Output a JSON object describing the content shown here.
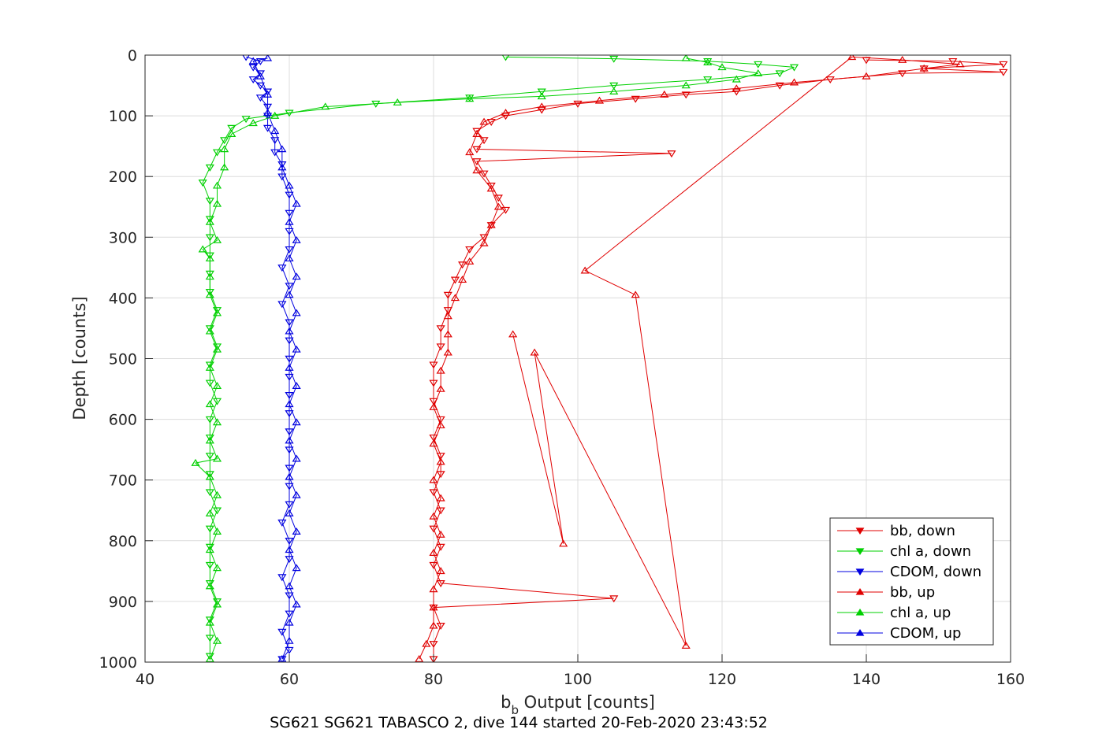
{
  "chart_data": {
    "type": "scatter",
    "subtitle": "SG621 SG621 TABASCO 2, dive 144 started 20-Feb-2020 23:43:52",
    "xlabel_main": "b",
    "xlabel_sub": "b",
    "xlabel_rest": " Output [counts]",
    "ylabel": "Depth [counts]",
    "xlim": [
      40,
      160
    ],
    "ylim": [
      0,
      1000
    ],
    "y_reversed": true,
    "grid": true,
    "legend_position": "bottom-right",
    "x_ticks": [
      "40",
      "60",
      "80",
      "100",
      "120",
      "140",
      "160"
    ],
    "y_ticks": [
      "0",
      "100",
      "200",
      "300",
      "400",
      "500",
      "600",
      "700",
      "800",
      "900",
      "1000"
    ],
    "series": [
      {
        "name": "bb, down",
        "color": "#e00000",
        "marker": "triangle-down",
        "points": [
          [
            140,
            8
          ],
          [
            152,
            10
          ],
          [
            159,
            15
          ],
          [
            148,
            22
          ],
          [
            159,
            28
          ],
          [
            145,
            30
          ],
          [
            135,
            40
          ],
          [
            128,
            50
          ],
          [
            122,
            60
          ],
          [
            115,
            65
          ],
          [
            108,
            72
          ],
          [
            100,
            80
          ],
          [
            95,
            90
          ],
          [
            90,
            100
          ],
          [
            88,
            110
          ],
          [
            86,
            125
          ],
          [
            87,
            140
          ],
          [
            86,
            155
          ],
          [
            113,
            162
          ],
          [
            86,
            175
          ],
          [
            87,
            195
          ],
          [
            88,
            215
          ],
          [
            89,
            235
          ],
          [
            90,
            255
          ],
          [
            88,
            280
          ],
          [
            87,
            300
          ],
          [
            85,
            320
          ],
          [
            84,
            345
          ],
          [
            83,
            370
          ],
          [
            82,
            395
          ],
          [
            82,
            420
          ],
          [
            81,
            450
          ],
          [
            81,
            480
          ],
          [
            80,
            510
          ],
          [
            80,
            540
          ],
          [
            80,
            570
          ],
          [
            81,
            600
          ],
          [
            80,
            630
          ],
          [
            81,
            660
          ],
          [
            81,
            690
          ],
          [
            80,
            720
          ],
          [
            81,
            750
          ],
          [
            80,
            780
          ],
          [
            81,
            810
          ],
          [
            80,
            840
          ],
          [
            81,
            870
          ],
          [
            105,
            895
          ],
          [
            80,
            910
          ],
          [
            81,
            940
          ],
          [
            80,
            970
          ],
          [
            80,
            995
          ]
        ]
      },
      {
        "name": "chl a, down",
        "color": "#00d000",
        "marker": "triangle-down",
        "points": [
          [
            90,
            3
          ],
          [
            105,
            6
          ],
          [
            118,
            10
          ],
          [
            125,
            15
          ],
          [
            130,
            20
          ],
          [
            128,
            30
          ],
          [
            118,
            40
          ],
          [
            105,
            50
          ],
          [
            95,
            60
          ],
          [
            85,
            70
          ],
          [
            72,
            80
          ],
          [
            60,
            95
          ],
          [
            54,
            105
          ],
          [
            52,
            120
          ],
          [
            51,
            140
          ],
          [
            50,
            160
          ],
          [
            49,
            185
          ],
          [
            48,
            210
          ],
          [
            49,
            240
          ],
          [
            49,
            270
          ],
          [
            49,
            300
          ],
          [
            49,
            330
          ],
          [
            49,
            360
          ],
          [
            49,
            390
          ],
          [
            50,
            420
          ],
          [
            49,
            450
          ],
          [
            50,
            480
          ],
          [
            49,
            510
          ],
          [
            49,
            540
          ],
          [
            50,
            570
          ],
          [
            49,
            600
          ],
          [
            49,
            630
          ],
          [
            49,
            660
          ],
          [
            49,
            690
          ],
          [
            49,
            720
          ],
          [
            50,
            750
          ],
          [
            49,
            780
          ],
          [
            49,
            810
          ],
          [
            49,
            840
          ],
          [
            49,
            870
          ],
          [
            50,
            900
          ],
          [
            49,
            930
          ],
          [
            49,
            960
          ],
          [
            49,
            990
          ]
        ]
      },
      {
        "name": "CDOM, down",
        "color": "#0000e0",
        "marker": "triangle-down",
        "points": [
          [
            54,
            3
          ],
          [
            56,
            10
          ],
          [
            55,
            20
          ],
          [
            56,
            30
          ],
          [
            55,
            40
          ],
          [
            56,
            50
          ],
          [
            57,
            60
          ],
          [
            56,
            70
          ],
          [
            57,
            85
          ],
          [
            57,
            100
          ],
          [
            57,
            120
          ],
          [
            58,
            140
          ],
          [
            58,
            160
          ],
          [
            59,
            180
          ],
          [
            59,
            200
          ],
          [
            60,
            230
          ],
          [
            60,
            260
          ],
          [
            60,
            290
          ],
          [
            60,
            320
          ],
          [
            59,
            350
          ],
          [
            60,
            380
          ],
          [
            59,
            410
          ],
          [
            60,
            440
          ],
          [
            60,
            470
          ],
          [
            60,
            500
          ],
          [
            60,
            530
          ],
          [
            60,
            560
          ],
          [
            60,
            590
          ],
          [
            60,
            620
          ],
          [
            60,
            650
          ],
          [
            60,
            680
          ],
          [
            60,
            710
          ],
          [
            60,
            740
          ],
          [
            59,
            770
          ],
          [
            60,
            800
          ],
          [
            60,
            830
          ],
          [
            59,
            860
          ],
          [
            60,
            890
          ],
          [
            60,
            920
          ],
          [
            59,
            950
          ],
          [
            60,
            980
          ],
          [
            59,
            995
          ]
        ]
      },
      {
        "name": "bb, up",
        "color": "#e00000",
        "marker": "triangle-up",
        "points": [
          [
            78,
            995
          ],
          [
            79,
            970
          ],
          [
            80,
            940
          ],
          [
            80,
            910
          ],
          [
            80,
            880
          ],
          [
            81,
            850
          ],
          [
            80,
            820
          ],
          [
            81,
            790
          ],
          [
            80,
            760
          ],
          [
            81,
            730
          ],
          [
            80,
            700
          ],
          [
            81,
            670
          ],
          [
            80,
            640
          ],
          [
            81,
            610
          ],
          [
            80,
            580
          ],
          [
            81,
            550
          ],
          [
            81,
            520
          ],
          [
            82,
            490
          ],
          [
            82,
            460
          ],
          [
            82,
            430
          ],
          [
            83,
            400
          ],
          [
            84,
            370
          ],
          [
            85,
            340
          ],
          [
            87,
            310
          ],
          [
            88,
            280
          ],
          [
            89,
            250
          ],
          [
            88,
            220
          ],
          [
            86,
            190
          ],
          [
            85,
            160
          ],
          [
            86,
            130
          ],
          [
            87,
            110
          ],
          [
            90,
            95
          ],
          [
            95,
            85
          ],
          [
            103,
            75
          ],
          [
            112,
            65
          ],
          [
            122,
            55
          ],
          [
            130,
            45
          ],
          [
            140,
            35
          ],
          [
            148,
            22
          ],
          [
            153,
            15
          ],
          [
            145,
            8
          ],
          [
            138,
            3
          ],
          [
            101,
            355
          ],
          [
            108,
            395
          ],
          [
            115,
            973
          ],
          [
            94,
            490
          ],
          [
            98,
            805
          ],
          [
            91,
            460
          ]
        ]
      },
      {
        "name": "chl a, up",
        "color": "#00d000",
        "marker": "triangle-up",
        "points": [
          [
            49,
            995
          ],
          [
            50,
            965
          ],
          [
            49,
            935
          ],
          [
            50,
            905
          ],
          [
            49,
            875
          ],
          [
            50,
            845
          ],
          [
            49,
            815
          ],
          [
            50,
            785
          ],
          [
            49,
            755
          ],
          [
            50,
            725
          ],
          [
            49,
            695
          ],
          [
            47,
            672
          ],
          [
            50,
            665
          ],
          [
            49,
            635
          ],
          [
            50,
            605
          ],
          [
            49,
            575
          ],
          [
            50,
            545
          ],
          [
            49,
            515
          ],
          [
            50,
            485
          ],
          [
            49,
            455
          ],
          [
            50,
            425
          ],
          [
            49,
            395
          ],
          [
            49,
            365
          ],
          [
            49,
            335
          ],
          [
            48,
            320
          ],
          [
            50,
            305
          ],
          [
            49,
            275
          ],
          [
            50,
            245
          ],
          [
            50,
            215
          ],
          [
            51,
            185
          ],
          [
            51,
            155
          ],
          [
            52,
            130
          ],
          [
            55,
            112
          ],
          [
            58,
            100
          ],
          [
            65,
            85
          ],
          [
            75,
            78
          ],
          [
            85,
            72
          ],
          [
            95,
            68
          ],
          [
            105,
            60
          ],
          [
            115,
            50
          ],
          [
            122,
            40
          ],
          [
            125,
            30
          ],
          [
            120,
            20
          ],
          [
            118,
            12
          ],
          [
            115,
            5
          ]
        ]
      },
      {
        "name": "CDOM, up",
        "color": "#0000e0",
        "marker": "triangle-up",
        "points": [
          [
            59,
            995
          ],
          [
            60,
            965
          ],
          [
            60,
            935
          ],
          [
            61,
            905
          ],
          [
            60,
            875
          ],
          [
            61,
            845
          ],
          [
            60,
            815
          ],
          [
            61,
            785
          ],
          [
            60,
            755
          ],
          [
            61,
            725
          ],
          [
            60,
            695
          ],
          [
            61,
            665
          ],
          [
            60,
            635
          ],
          [
            61,
            605
          ],
          [
            60,
            575
          ],
          [
            61,
            545
          ],
          [
            60,
            515
          ],
          [
            61,
            485
          ],
          [
            60,
            455
          ],
          [
            61,
            425
          ],
          [
            60,
            395
          ],
          [
            61,
            365
          ],
          [
            60,
            335
          ],
          [
            61,
            305
          ],
          [
            60,
            275
          ],
          [
            61,
            245
          ],
          [
            60,
            215
          ],
          [
            59,
            185
          ],
          [
            59,
            155
          ],
          [
            58,
            125
          ],
          [
            57,
            95
          ],
          [
            57,
            65
          ],
          [
            56,
            35
          ],
          [
            55,
            10
          ],
          [
            57,
            5
          ]
        ]
      }
    ]
  }
}
